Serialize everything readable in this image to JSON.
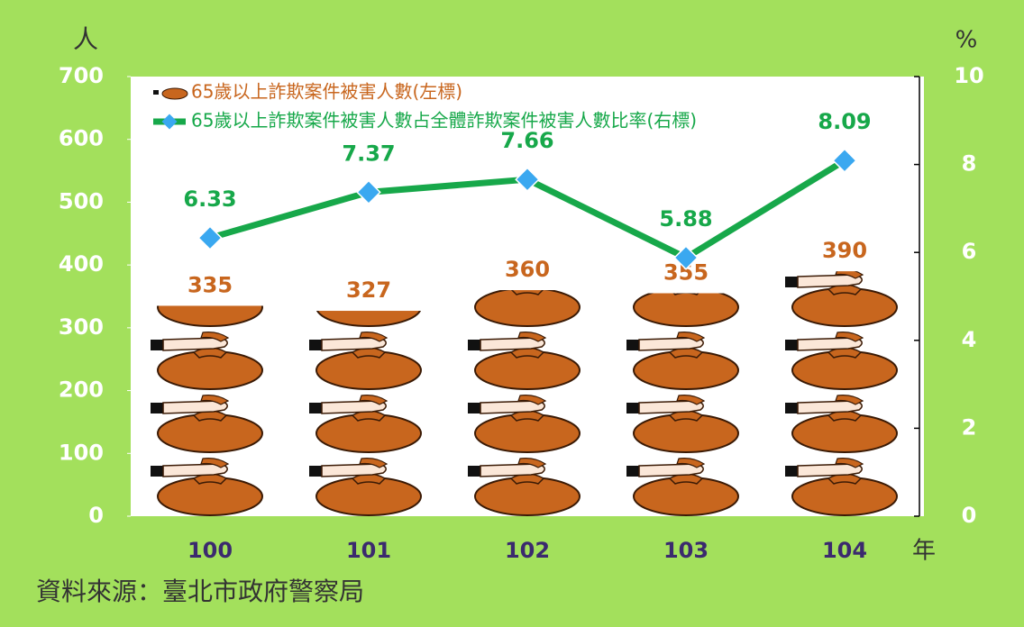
{
  "chart_data": {
    "type": "bar",
    "categories": [
      "100",
      "101",
      "102",
      "103",
      "104"
    ],
    "xlabel": "年",
    "ylabel": "人",
    "y2label": "%",
    "series": [
      {
        "name": "65歲以上詐欺案件被害人數(左標)",
        "color": "#c8661e",
        "values": [
          335,
          327,
          360,
          355,
          390
        ]
      },
      {
        "name": "65歲以上詐欺案件被害人數占全體詐欺案件被害人數比率(右標)",
        "color": "#17a84a",
        "marker_color": "#3aa8f0",
        "type": "line",
        "axis": "y2",
        "values": [
          6.33,
          7.37,
          7.66,
          5.88,
          8.09
        ]
      }
    ],
    "ylim": [
      0,
      700
    ],
    "yticks": [
      0,
      100,
      200,
      300,
      400,
      500,
      600,
      700
    ],
    "y2lim": [
      0,
      10
    ],
    "y2ticks": [
      0,
      2,
      4,
      6,
      8,
      10
    ],
    "legend": "upper left",
    "source": "資料來源：臺北市政府警察局"
  }
}
